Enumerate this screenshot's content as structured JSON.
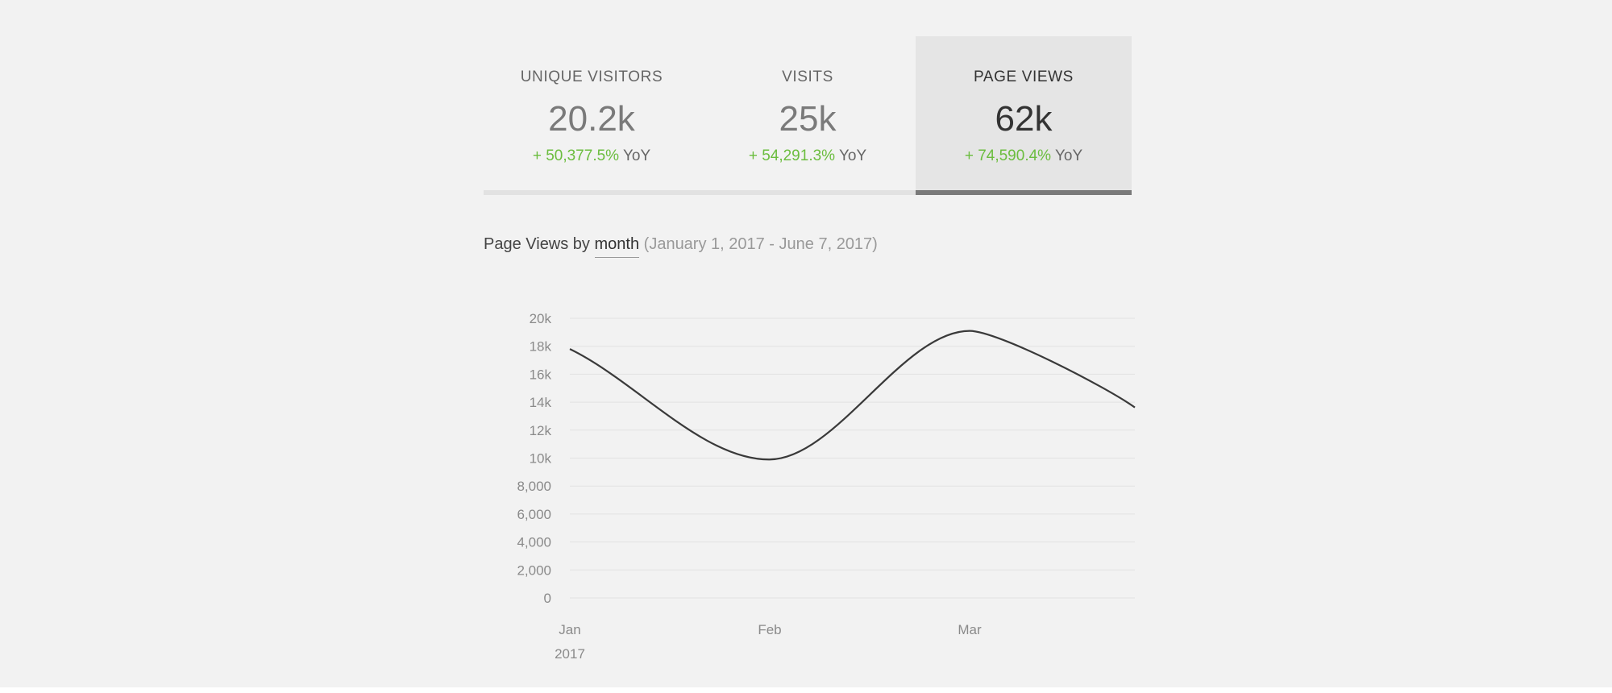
{
  "stats": [
    {
      "label": "UNIQUE VISITORS",
      "value": "20.2k",
      "change": "+ 50,377.5%",
      "suffix": "YoY",
      "active": false
    },
    {
      "label": "VISITS",
      "value": "25k",
      "change": "+ 54,291.3%",
      "suffix": "YoY",
      "active": false
    },
    {
      "label": "PAGE VIEWS",
      "value": "62k",
      "change": "+ 74,590.4%",
      "suffix": "YoY",
      "active": true
    }
  ],
  "heading": {
    "prefix": "Page Views by",
    "period": "month",
    "range": "(January 1, 2017 - June 7, 2017)"
  },
  "colors": {
    "positive": "#6bbd3e",
    "line": "#3a3a3a",
    "active_tab_border": "#7a7a7a"
  },
  "chart_data": {
    "type": "line",
    "title": "Page Views by month",
    "xlabel": "",
    "ylabel": "",
    "categories": [
      "Jan",
      "Feb",
      "Mar"
    ],
    "x_sublabel": "2017",
    "series": [
      {
        "values": [
          17800,
          9900,
          19100
        ]
      }
    ],
    "ylim": [
      0,
      20000
    ],
    "yticks": [
      0,
      2000,
      4000,
      6000,
      8000,
      10000,
      12000,
      14000,
      16000,
      18000,
      20000
    ],
    "ytick_labels": [
      "0",
      "2,000",
      "4,000",
      "6,000",
      "8,000",
      "10k",
      "12k",
      "14k",
      "16k",
      "18k",
      "20k"
    ],
    "grid": true,
    "legend": "none"
  }
}
